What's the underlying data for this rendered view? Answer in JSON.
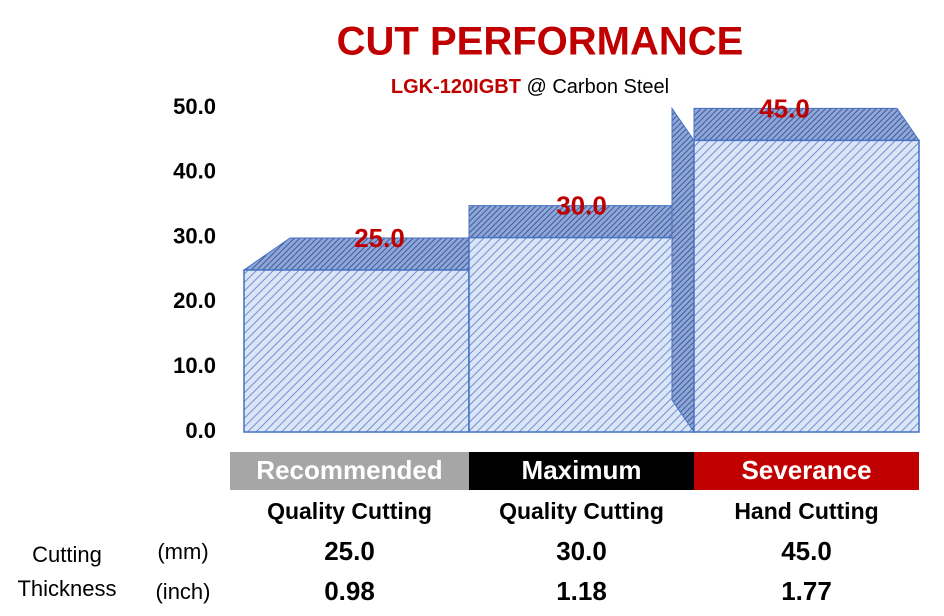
{
  "chart_data": {
    "type": "bar",
    "title": "CUT PERFORMANCE",
    "subtitle_model": "LGK-120IGBT",
    "subtitle_material": "@ Carbon Steel",
    "categories": [
      "Recommended",
      "Maximum",
      "Severance"
    ],
    "category_colors": [
      "#a6a6a6",
      "#000000",
      "#c00000"
    ],
    "subcategories": [
      "Quality Cutting",
      "Quality Cutting",
      "Hand Cutting"
    ],
    "values": [
      25,
      30,
      45
    ],
    "value_labels": [
      "25.0",
      "30.0",
      "45.0"
    ],
    "color": "#4472c4",
    "ylim": [
      0,
      50
    ],
    "yticks": [
      {
        "value": 0,
        "label": "0.0"
      },
      {
        "value": 10,
        "label": "10.0"
      },
      {
        "value": 20,
        "label": "20.0"
      },
      {
        "value": 30,
        "label": "30.0"
      },
      {
        "value": 40,
        "label": "40.0"
      },
      {
        "value": 50,
        "label": "50.0"
      }
    ],
    "grid": false,
    "table": {
      "row_label": [
        "Cutting",
        "Thickness"
      ],
      "units": [
        "(mm)",
        "(inch)"
      ],
      "rows": [
        [
          "25.0",
          "30.0",
          "45.0"
        ],
        [
          "0.98",
          "1.18",
          "1.77"
        ]
      ]
    }
  }
}
